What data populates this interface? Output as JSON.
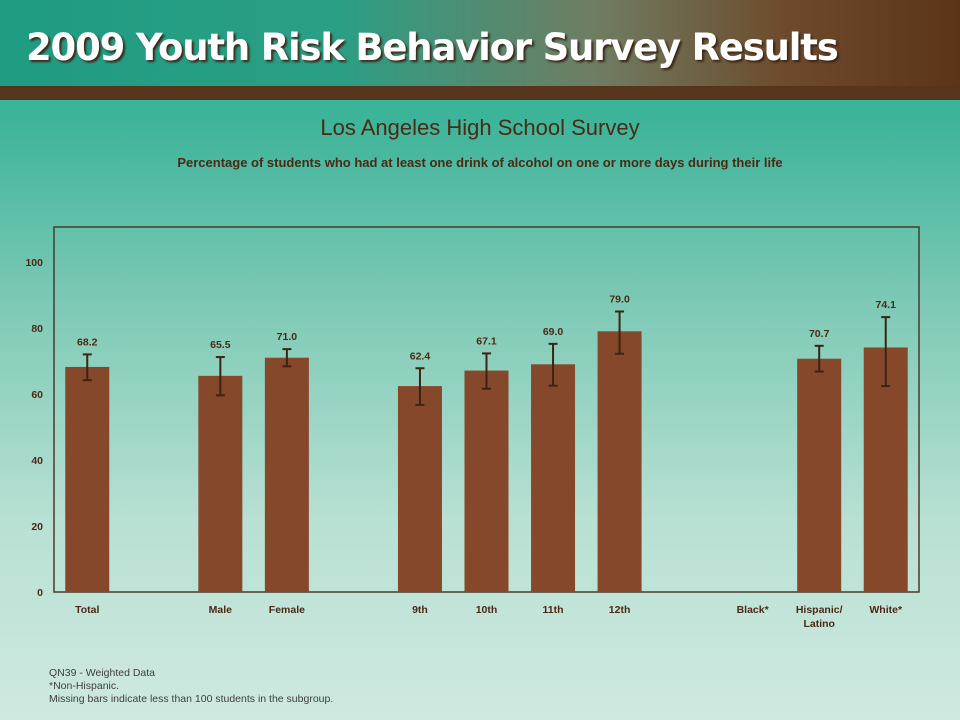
{
  "header": {
    "title": "2009 Youth Risk Behavior Survey Results"
  },
  "colors": {
    "bar": "#86482a",
    "text": "#4a2a14",
    "error_bar": "#3b2414",
    "plot_border": "#4a3a2a"
  },
  "chart_data": {
    "type": "bar",
    "title": "Los Angeles High School Survey",
    "subtitle": "Percentage of students who had at least one drink of alcohol on one or more days during their life",
    "xlabel": "",
    "ylabel": "",
    "ylim": [
      0,
      100
    ],
    "yticks": [
      "0",
      "20",
      "40",
      "60",
      "80",
      "100"
    ],
    "grid": false,
    "categories": [
      "Total",
      "",
      "Male",
      "Female",
      "",
      "9th",
      "10th",
      "11th",
      "12th",
      "",
      "Black*",
      "Hispanic/ Latino",
      "White*"
    ],
    "values": [
      68.2,
      null,
      65.5,
      71.0,
      null,
      62.4,
      67.1,
      69.0,
      79.0,
      null,
      null,
      70.7,
      74.1
    ],
    "value_labels": [
      "68.2",
      "",
      "65.5",
      "71.0",
      "",
      "62.4",
      "67.1",
      "69.0",
      "79.0",
      "",
      "",
      "70.7",
      "74.1"
    ],
    "ci_lower": [
      64.2,
      null,
      59.6,
      68.4,
      null,
      56.7,
      61.6,
      62.5,
      72.2,
      null,
      null,
      66.8,
      62.4
    ],
    "ci_upper": [
      72.0,
      null,
      71.2,
      73.6,
      null,
      67.8,
      72.3,
      75.2,
      85.0,
      null,
      null,
      74.6,
      83.3
    ]
  },
  "notes": [
    "QN39 - Weighted Data",
    "*Non-Hispanic.",
    "Missing bars indicate less than 100 students in the subgroup."
  ]
}
